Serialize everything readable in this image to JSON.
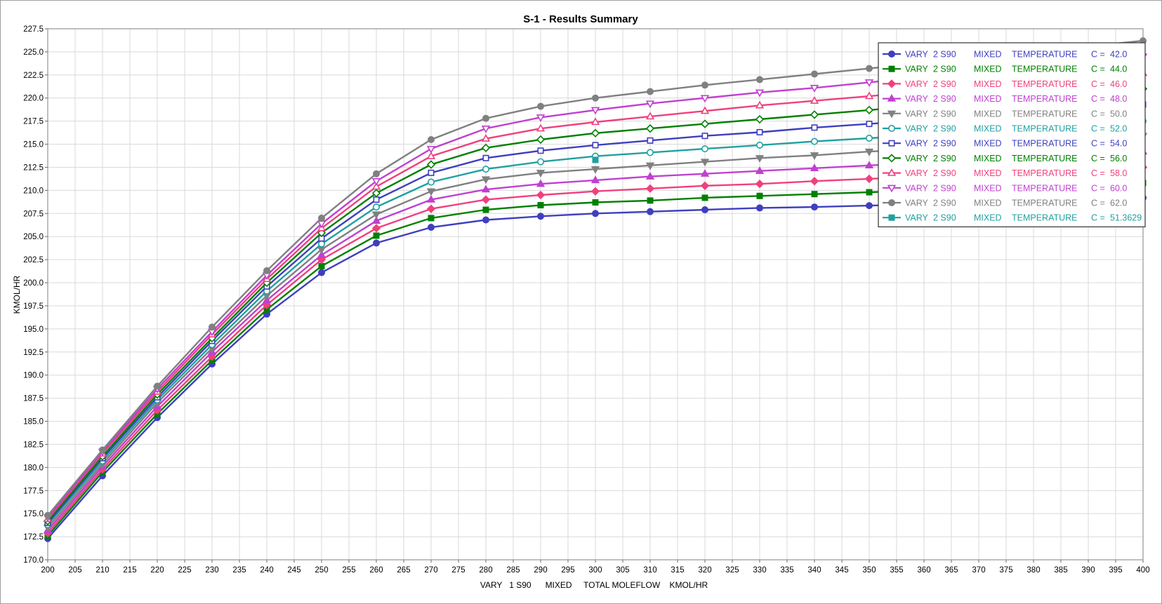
{
  "chart_data": {
    "type": "line",
    "title": "S-1 - Results Summary",
    "xlabel": "VARY   1 S90      MIXED     TOTAL MOLEFLOW    KMOL/HR",
    "ylabel": "KMOL/HR",
    "xlim": [
      200,
      400
    ],
    "ylim": [
      170,
      227.5
    ],
    "x_ticks": [
      "200",
      "205",
      "210",
      "215",
      "220",
      "225",
      "230",
      "235",
      "240",
      "245",
      "250",
      "255",
      "260",
      "265",
      "270",
      "275",
      "280",
      "285",
      "290",
      "295",
      "300",
      "305",
      "310",
      "315",
      "320",
      "325",
      "330",
      "335",
      "340",
      "345",
      "350",
      "355",
      "360",
      "365",
      "370",
      "375",
      "380",
      "385",
      "390",
      "395",
      "400"
    ],
    "y_ticks": [
      "170.0",
      "172.5",
      "175.0",
      "177.5",
      "180.0",
      "182.5",
      "185.0",
      "187.5",
      "190.0",
      "192.5",
      "195.0",
      "197.5",
      "200.0",
      "202.5",
      "205.0",
      "207.5",
      "210.0",
      "212.5",
      "215.0",
      "217.5",
      "220.0",
      "222.5",
      "225.0",
      "227.5"
    ],
    "grid": true,
    "legend_position": "top-right",
    "x": [
      200,
      210,
      220,
      230,
      240,
      250,
      260,
      270,
      280,
      290,
      300,
      310,
      320,
      330,
      340,
      350,
      360,
      370,
      380,
      390,
      400
    ],
    "series": [
      {
        "name": "VARY   2 S90      MIXED     TEMPERATURE        C =   42.0",
        "col1": "VARY",
        "col2": "2 S90",
        "col3": "MIXED",
        "col4": "TEMPERATURE",
        "col5": "C =",
        "col6": "42.0",
        "color": "#3f3fbf",
        "marker": "circle-filled",
        "values": [
          172.3,
          179.1,
          185.4,
          191.2,
          196.6,
          201.1,
          204.3,
          206.0,
          206.8,
          207.2,
          207.5,
          207.7,
          207.9,
          208.1,
          208.2,
          208.35,
          208.5,
          208.6,
          208.7,
          208.8,
          209.2
        ]
      },
      {
        "name": "VARY   2 S90      MIXED     TEMPERATURE        C =   44.0",
        "col1": "VARY",
        "col2": "2 S90",
        "col3": "MIXED",
        "col4": "TEMPERATURE",
        "col5": "C =",
        "col6": "44.0",
        "color": "#008000",
        "marker": "square-filled",
        "values": [
          172.6,
          179.5,
          185.8,
          191.6,
          197.1,
          201.8,
          205.1,
          207.0,
          207.9,
          208.4,
          208.7,
          208.9,
          209.2,
          209.4,
          209.6,
          209.8,
          210.0,
          210.2,
          210.4,
          210.6,
          210.8
        ]
      },
      {
        "name": "VARY   2 S90      MIXED     TEMPERATURE        C =   46.0",
        "col1": "VARY",
        "col2": "2 S90",
        "col3": "MIXED",
        "col4": "TEMPERATURE",
        "col5": "C =",
        "col6": "46.0",
        "color": "#f0407e",
        "marker": "diamond-filled",
        "values": [
          172.9,
          179.8,
          186.2,
          192.0,
          197.6,
          202.5,
          205.9,
          208.0,
          209.0,
          209.5,
          209.9,
          210.2,
          210.5,
          210.7,
          211.0,
          211.25,
          211.5,
          211.75,
          212.0,
          212.2,
          212.5
        ]
      },
      {
        "name": "VARY   2 S90      MIXED     TEMPERATURE        C =   48.0",
        "col1": "VARY",
        "col2": "2 S90",
        "col3": "MIXED",
        "col4": "TEMPERATURE",
        "col5": "C =",
        "col6": "48.0",
        "color": "#c040d0",
        "marker": "triangle-filled",
        "values": [
          173.2,
          180.1,
          186.6,
          192.5,
          198.1,
          203.0,
          206.7,
          209.0,
          210.1,
          210.7,
          211.1,
          211.5,
          211.8,
          212.1,
          212.4,
          212.7,
          213.0,
          213.3,
          213.6,
          213.9,
          214.2
        ]
      },
      {
        "name": "VARY   2 S90      MIXED     TEMPERATURE        C =   50.0",
        "col1": "VARY",
        "col2": "2 S90",
        "col3": "MIXED",
        "col4": "TEMPERATURE",
        "col5": "C =",
        "col6": "50.0",
        "color": "#808080",
        "marker": "triangle-down-filled",
        "values": [
          173.5,
          180.4,
          187.0,
          192.9,
          198.6,
          203.6,
          207.4,
          209.9,
          211.2,
          211.9,
          212.3,
          212.7,
          213.1,
          213.5,
          213.8,
          214.2,
          214.5,
          214.9,
          215.2,
          215.5,
          215.9
        ]
      },
      {
        "name": "VARY   2 S90      MIXED     TEMPERATURE        C =   52.0",
        "col1": "VARY",
        "col2": "2 S90",
        "col3": "MIXED",
        "col4": "TEMPERATURE",
        "col5": "C =",
        "col6": "52.0",
        "color": "#20a0a0",
        "marker": "circle-open",
        "values": [
          173.8,
          180.7,
          187.3,
          193.3,
          199.1,
          204.2,
          208.2,
          210.9,
          212.3,
          213.1,
          213.7,
          214.1,
          214.5,
          214.9,
          215.3,
          215.65,
          216.0,
          216.4,
          216.8,
          217.1,
          217.5
        ]
      },
      {
        "name": "VARY   2 S90      MIXED     TEMPERATURE        C =   54.0",
        "col1": "VARY",
        "col2": "2 S90",
        "col3": "MIXED",
        "col4": "TEMPERATURE",
        "col5": "C =",
        "col6": "54.0",
        "color": "#3f3fbf",
        "marker": "square-open",
        "values": [
          174.0,
          181.0,
          187.6,
          193.7,
          199.6,
          204.8,
          209.0,
          211.9,
          213.5,
          214.3,
          214.9,
          215.4,
          215.9,
          216.3,
          216.8,
          217.2,
          217.6,
          218.1,
          218.5,
          218.9,
          219.3
        ]
      },
      {
        "name": "VARY   2 S90      MIXED     TEMPERATURE        C =   56.0",
        "col1": "VARY",
        "col2": "2 S90",
        "col3": "MIXED",
        "col4": "TEMPERATURE",
        "col5": "C =",
        "col6": "56.0",
        "color": "#008000",
        "marker": "diamond-open",
        "values": [
          174.2,
          181.2,
          187.9,
          194.0,
          200.0,
          205.4,
          209.7,
          212.8,
          214.6,
          215.5,
          216.2,
          216.7,
          217.2,
          217.7,
          218.2,
          218.7,
          219.2,
          219.6,
          220.1,
          220.5,
          221.0
        ]
      },
      {
        "name": "VARY   2 S90      MIXED     TEMPERATURE        C =   58.0",
        "col1": "VARY",
        "col2": "2 S90",
        "col3": "MIXED",
        "col4": "TEMPERATURE",
        "col5": "C =",
        "col6": "58.0",
        "color": "#f0407e",
        "marker": "triangle-open",
        "values": [
          174.4,
          181.5,
          188.2,
          194.4,
          200.4,
          205.9,
          210.4,
          213.7,
          215.6,
          216.7,
          217.4,
          218.0,
          218.6,
          219.2,
          219.7,
          220.2,
          220.7,
          221.2,
          221.7,
          222.2,
          222.7
        ]
      },
      {
        "name": "VARY   2 S90      MIXED     TEMPERATURE        C =   60.0",
        "col1": "VARY",
        "col2": "2 S90",
        "col3": "MIXED",
        "col4": "TEMPERATURE",
        "col5": "C =",
        "col6": "60.0",
        "color": "#c040d0",
        "marker": "triangle-down-open",
        "values": [
          174.6,
          181.7,
          188.5,
          194.7,
          200.8,
          206.4,
          211.0,
          214.5,
          216.7,
          217.9,
          218.7,
          219.4,
          220.0,
          220.6,
          221.1,
          221.7,
          222.3,
          222.8,
          223.4,
          223.9,
          224.5
        ]
      },
      {
        "name": "VARY   2 S90      MIXED     TEMPERATURE        C =   62.0",
        "col1": "VARY",
        "col2": "2 S90",
        "col3": "MIXED",
        "col4": "TEMPERATURE",
        "col5": "C =",
        "col6": "62.0",
        "color": "#808080",
        "marker": "circle-filled",
        "values": [
          174.8,
          181.9,
          188.8,
          195.2,
          201.3,
          207.0,
          211.8,
          215.5,
          217.8,
          219.1,
          220.0,
          220.7,
          221.4,
          222.0,
          222.6,
          223.2,
          223.8,
          224.5,
          225.1,
          225.6,
          226.2
        ]
      },
      {
        "name": "VARY   2 S90      MIXED     TEMPERATURE        C =   51.3629",
        "col1": "VARY",
        "col2": "2 S90",
        "col3": "MIXED",
        "col4": "TEMPERATURE",
        "col5": "C =",
        "col6": "51.3629",
        "color": "#20a0a0",
        "marker": "square-filled",
        "x_values": [
          300
        ],
        "values": [
          213.3
        ]
      }
    ]
  }
}
